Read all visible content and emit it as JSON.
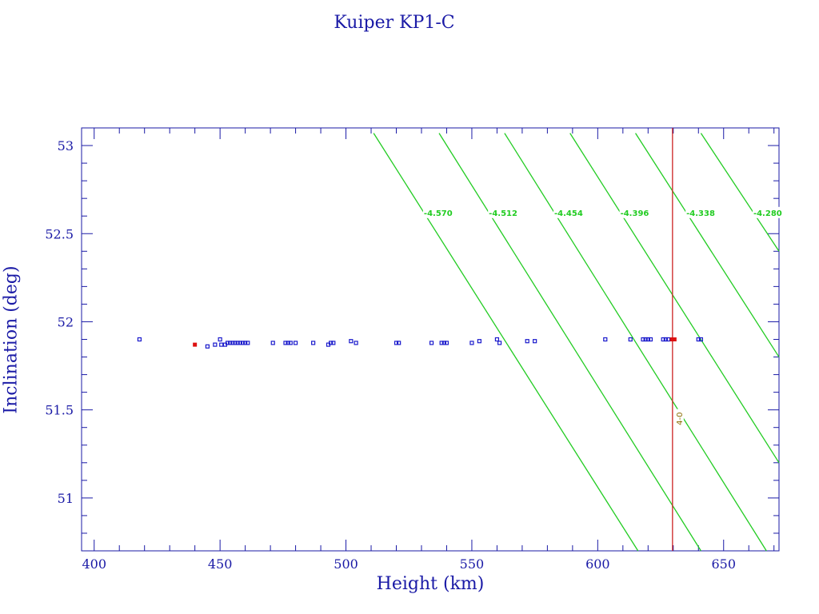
{
  "chart_data": {
    "type": "scatter",
    "title": "Kuiper KP1-C",
    "xlabel": "Height (km)",
    "ylabel": "Inclination (deg)",
    "xlim": [
      395,
      672
    ],
    "ylim": [
      50.7,
      53.1
    ],
    "xticks": [
      400,
      450,
      500,
      550,
      600,
      650
    ],
    "yticks": [
      51,
      51.5,
      52,
      52.5,
      53
    ],
    "xtick_labels": [
      "400",
      "450",
      "500",
      "550",
      "600",
      "650"
    ],
    "ytick_labels": [
      "51",
      "51.5",
      "52",
      "52.5",
      "53"
    ],
    "grid": false,
    "colors": {
      "axis": "#1a1aa6",
      "points": "#1a1acc",
      "highlight": "#dd1111",
      "contours": "#22cc22",
      "marker_line": "#cc2222",
      "marker_label": "#8b6b00"
    },
    "series": [
      {
        "values": [
          [
            418,
            51.9
          ],
          [
            445,
            51.86
          ],
          [
            448,
            51.87
          ],
          [
            450,
            51.9
          ],
          [
            450.5,
            51.87
          ],
          [
            452,
            51.87
          ],
          [
            453,
            51.88
          ],
          [
            454,
            51.88
          ],
          [
            455,
            51.88
          ],
          [
            456,
            51.88
          ],
          [
            457,
            51.88
          ],
          [
            458,
            51.88
          ],
          [
            459,
            51.88
          ],
          [
            460,
            51.88
          ],
          [
            461,
            51.88
          ],
          [
            471,
            51.88
          ],
          [
            476,
            51.88
          ],
          [
            477,
            51.88
          ],
          [
            478,
            51.88
          ],
          [
            480,
            51.88
          ],
          [
            487,
            51.88
          ],
          [
            493,
            51.87
          ],
          [
            494,
            51.88
          ],
          [
            495,
            51.88
          ],
          [
            502,
            51.89
          ],
          [
            504,
            51.88
          ],
          [
            520,
            51.88
          ],
          [
            521,
            51.88
          ],
          [
            534,
            51.88
          ],
          [
            538,
            51.88
          ],
          [
            539,
            51.88
          ],
          [
            540,
            51.88
          ],
          [
            550,
            51.88
          ],
          [
            553,
            51.89
          ],
          [
            560,
            51.9
          ],
          [
            561,
            51.88
          ],
          [
            572,
            51.89
          ],
          [
            575,
            51.89
          ],
          [
            603,
            51.9
          ],
          [
            613,
            51.9
          ],
          [
            618,
            51.9
          ],
          [
            619,
            51.9
          ],
          [
            620,
            51.9
          ],
          [
            621,
            51.9
          ],
          [
            626,
            51.9
          ],
          [
            627,
            51.9
          ],
          [
            628,
            51.9
          ],
          [
            640,
            51.9
          ],
          [
            641,
            51.9
          ]
        ]
      },
      {
        "values": [
          [
            440,
            51.87
          ],
          [
            629.5,
            51.9
          ],
          [
            630.5,
            51.9
          ]
        ]
      }
    ],
    "contours": [
      {
        "label": "-4.570",
        "points": [
          [
            511,
            53.07
          ],
          [
            616,
            50.7
          ]
        ]
      },
      {
        "label": "-4.512",
        "points": [
          [
            537,
            53.07
          ],
          [
            641,
            50.7
          ]
        ]
      },
      {
        "label": "-4.454",
        "points": [
          [
            563,
            53.07
          ],
          [
            667,
            50.7
          ]
        ]
      },
      {
        "label": "-4.396",
        "points": [
          [
            589,
            53.07
          ],
          [
            672,
            51.2
          ]
        ]
      },
      {
        "label": "-4.338",
        "points": [
          [
            615,
            53.07
          ],
          [
            672,
            51.8
          ]
        ]
      },
      {
        "label": "-4.280",
        "points": [
          [
            641,
            53.07
          ],
          [
            672,
            52.4
          ]
        ]
      }
    ],
    "contour_label_y": 52.62,
    "marker_line": {
      "x": 629.7,
      "label": "4-0",
      "label_y": 51.45
    }
  }
}
